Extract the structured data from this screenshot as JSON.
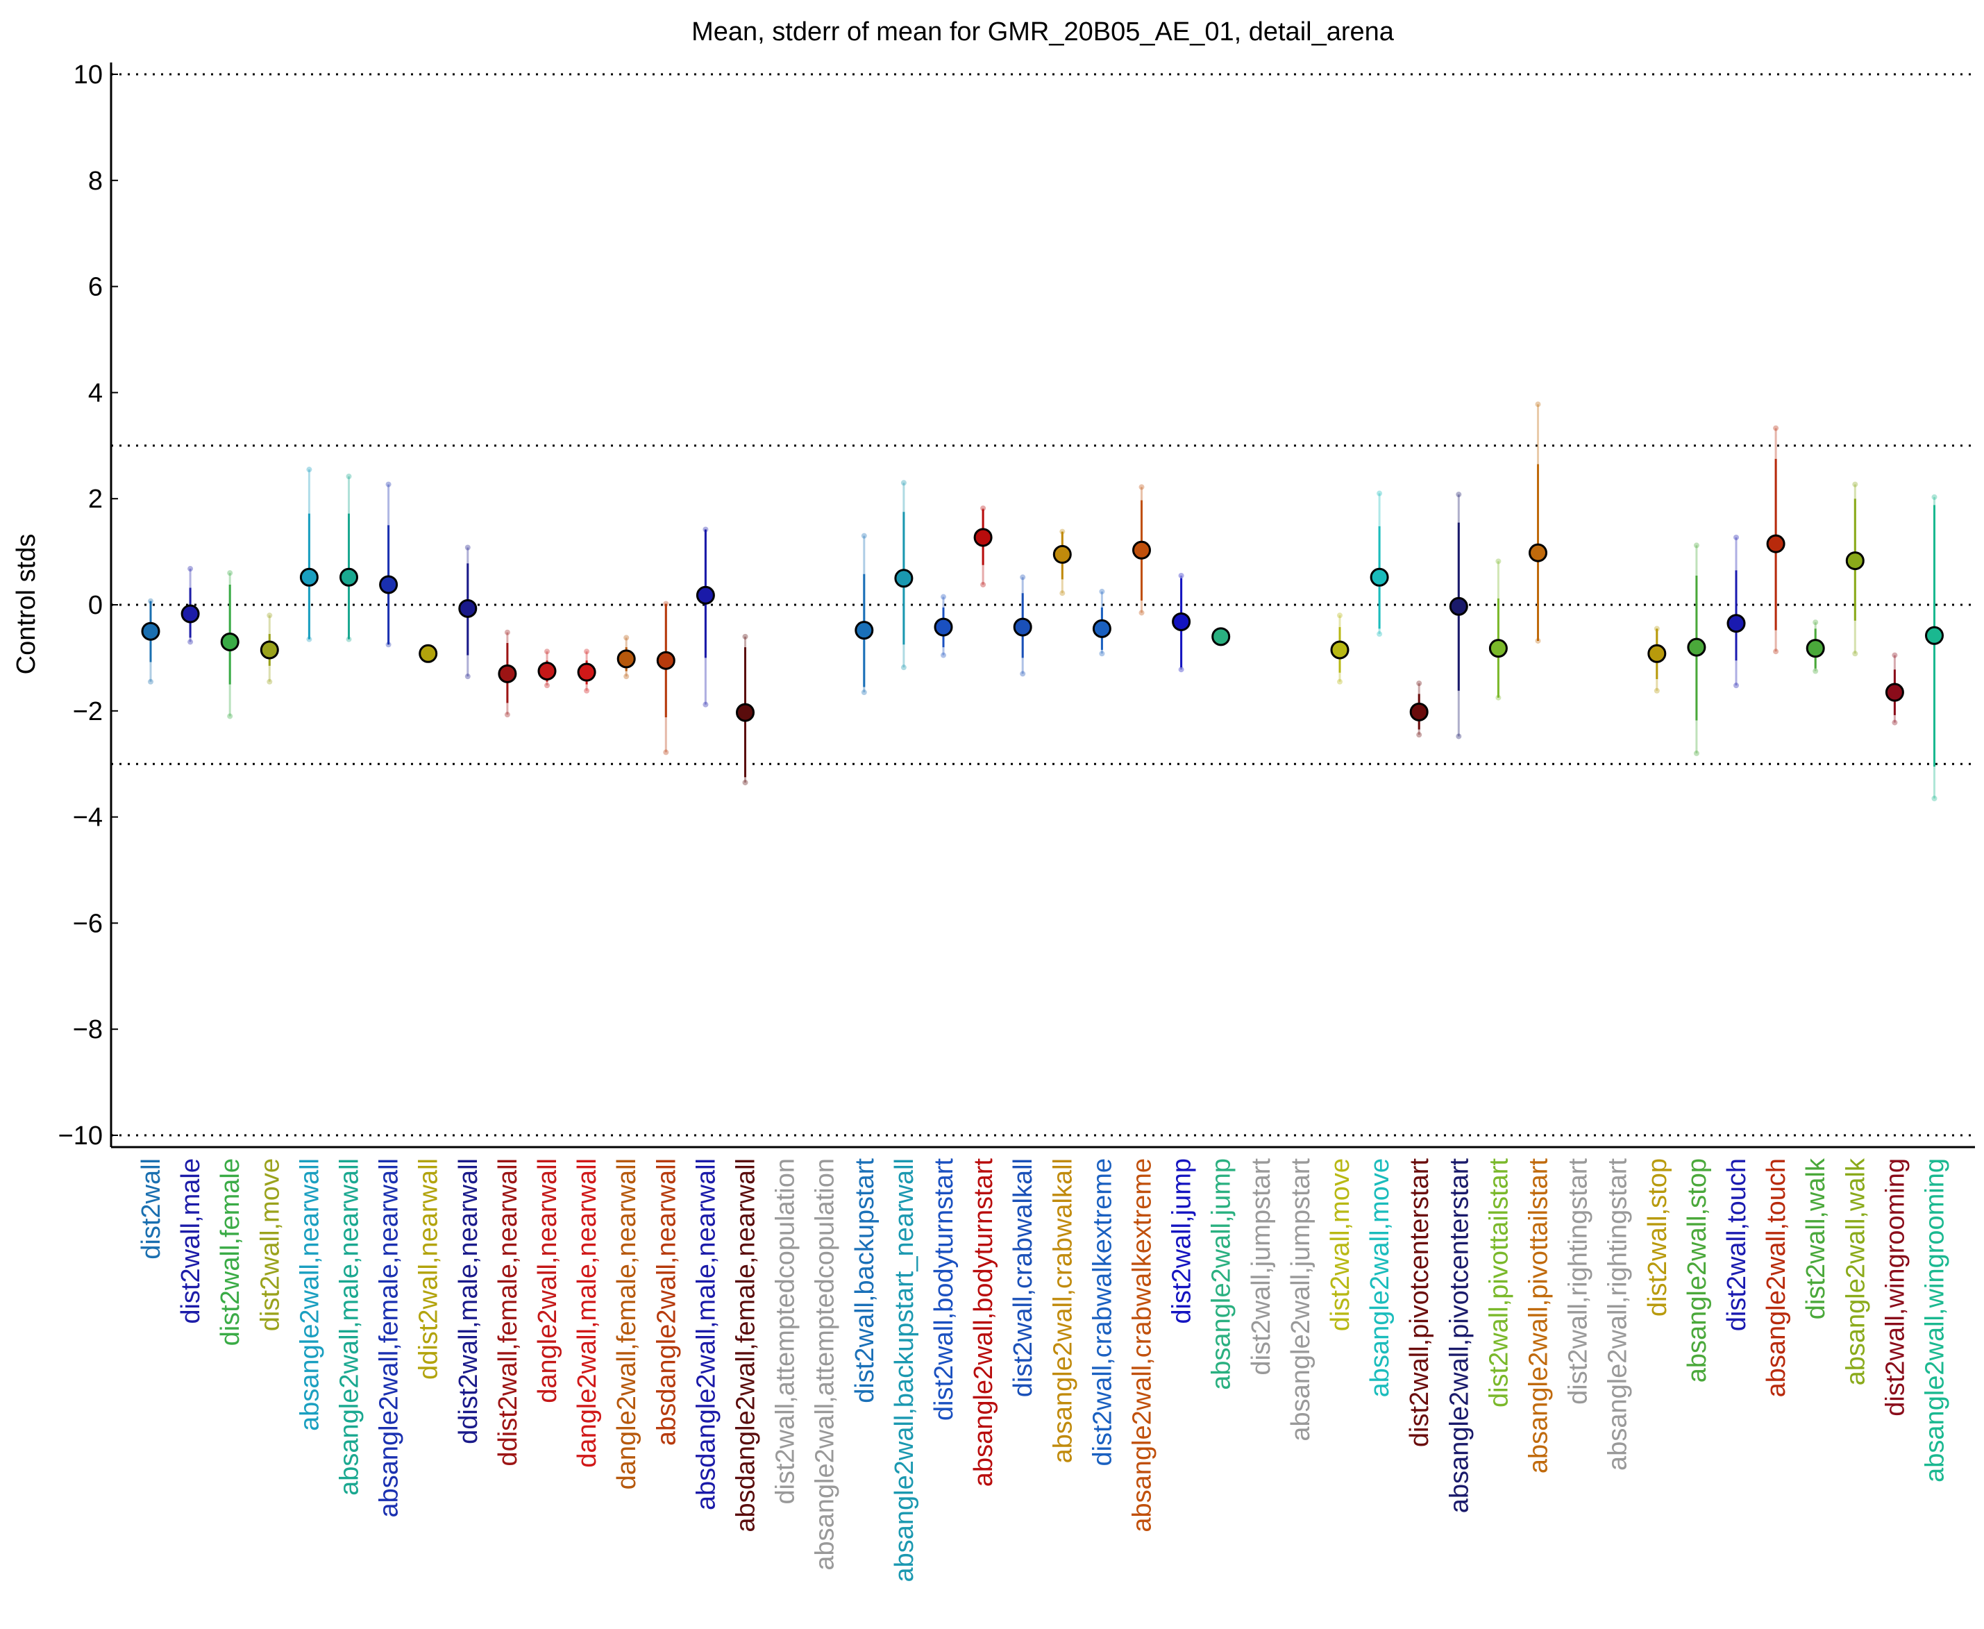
{
  "chart_data": {
    "type": "scatter",
    "title": "Mean, stderr of mean for GMR_20B05_AE_01, detail_arena",
    "xlabel": "",
    "ylabel": "Control stds",
    "ylim": [
      -10.2,
      10.2
    ],
    "yticks": [
      10,
      8,
      6,
      4,
      2,
      0,
      -2,
      -4,
      -6,
      -8,
      -10
    ],
    "ytick_labels": [
      "10",
      "8",
      "6",
      "4",
      "2",
      "0",
      "−2",
      "−4",
      "−6",
      "−8",
      "−10"
    ],
    "reference_lines": [
      10,
      3,
      0,
      -3,
      -10
    ],
    "grid": false,
    "legend": "none",
    "categories": [
      "dist2wall",
      "dist2wall,male",
      "dist2wall,female",
      "dist2wall,move",
      "absangle2wall,nearwall",
      "absangle2wall,male,nearwall",
      "absangle2wall,female,nearwall",
      "ddist2wall,nearwall",
      "ddist2wall,male,nearwall",
      "ddist2wall,female,nearwall",
      "dangle2wall,nearwall",
      "dangle2wall,male,nearwall",
      "dangle2wall,female,nearwall",
      "absdangle2wall,nearwall",
      "absdangle2wall,male,nearwall",
      "absdangle2wall,female,nearwall",
      "dist2wall,attemptedcopulation",
      "absangle2wall,attemptedcopulation",
      "dist2wall,backupstart",
      "absangle2wall,backupstart_nearwall",
      "dist2wall,bodyturnstart",
      "absangle2wall,bodyturnstart",
      "dist2wall,crabwalkall",
      "absangle2wall,crabwalkall",
      "dist2wall,crabwalkextreme",
      "absangle2wall,crabwalkextreme",
      "dist2wall,jump",
      "absangle2wall,jump",
      "dist2wall,jumpstart",
      "absangle2wall,jumpstart",
      "dist2wall,move",
      "absangle2wall,move",
      "dist2wall,pivotcenterstart",
      "absangle2wall,pivotcenterstart",
      "dist2wall,pivottailstart",
      "absangle2wall,pivottailstart",
      "dist2wall,rightingstart",
      "absangle2wall,rightingstart",
      "dist2wall,stop",
      "absangle2wall,stop",
      "dist2wall,touch",
      "absangle2wall,touch",
      "dist2wall,walk",
      "absangle2wall,walk",
      "dist2wall,wingrooming",
      "absangle2wall,wingrooming"
    ],
    "colors": [
      "#1a6fb0",
      "#1c1ca8",
      "#3aab46",
      "#9aa21c",
      "#1a9fc0",
      "#1aa890",
      "#1a30b0",
      "#b2a30c",
      "#1a1a8a",
      "#9c1414",
      "#c41818",
      "#d01818",
      "#b6580c",
      "#b63a0c",
      "#1a1aa8",
      "#5a0c0c",
      "#999999",
      "#999999",
      "#1a70b8",
      "#1a98b0",
      "#1a50c0",
      "#b80c0c",
      "#1a50b8",
      "#c08a0c",
      "#1a60c0",
      "#c0500c",
      "#1414c0",
      "#2ab080",
      "#999999",
      "#999999",
      "#b8b814",
      "#1abcbc",
      "#6a0c0c",
      "#1a1a6a",
      "#7ab82a",
      "#c06a0c",
      "#999999",
      "#999999",
      "#b89a0c",
      "#4aa83a",
      "#1a1ab0",
      "#b82a0c",
      "#4aa83a",
      "#8aaa1a",
      "#8a0c1a",
      "#1ab890"
    ],
    "values": [
      -0.5,
      -0.17,
      -0.7,
      -0.85,
      0.52,
      0.52,
      0.38,
      -0.92,
      -0.07,
      -1.3,
      -1.25,
      -1.27,
      -1.02,
      -1.05,
      0.18,
      -2.03,
      null,
      null,
      -0.48,
      0.5,
      -0.42,
      1.27,
      -0.42,
      0.95,
      -0.45,
      1.03,
      -0.32,
      -0.6,
      null,
      null,
      -0.85,
      0.52,
      -2.02,
      -0.03,
      -0.82,
      0.98,
      null,
      null,
      -0.92,
      -0.8,
      -0.35,
      1.15,
      -0.82,
      0.83,
      -1.65,
      -0.58
    ],
    "stderr_ranges": [
      [
        -1.08,
        0.07
      ],
      [
        -0.62,
        0.32
      ],
      [
        -1.5,
        0.38
      ],
      [
        -1.15,
        -0.55
      ],
      [
        -0.65,
        1.72
      ],
      [
        -0.65,
        1.72
      ],
      [
        -0.75,
        1.5
      ],
      [
        -1.02,
        -0.82
      ],
      [
        -0.95,
        0.78
      ],
      [
        -1.85,
        -0.72
      ],
      [
        -1.45,
        -1.05
      ],
      [
        -1.5,
        -1.05
      ],
      [
        -1.25,
        -0.8
      ],
      [
        -2.12,
        0.02
      ],
      [
        -1.0,
        1.42
      ],
      [
        -3.25,
        -0.8
      ],
      null,
      null,
      [
        -1.55,
        0.58
      ],
      [
        -0.75,
        1.75
      ],
      [
        -0.8,
        -0.05
      ],
      [
        0.75,
        1.8
      ],
      [
        -1.0,
        0.22
      ],
      [
        0.48,
        1.38
      ],
      [
        -0.85,
        -0.05
      ],
      [
        0.08,
        1.97
      ],
      [
        -1.18,
        0.5
      ],
      [
        -0.72,
        -0.48
      ],
      null,
      null,
      [
        -1.28,
        -0.42
      ],
      [
        -0.45,
        1.48
      ],
      [
        -2.35,
        -1.68
      ],
      [
        -1.62,
        1.55
      ],
      [
        -1.75,
        0.12
      ],
      [
        -0.68,
        2.65
      ],
      null,
      null,
      [
        -1.4,
        -0.45
      ],
      [
        -2.18,
        0.55
      ],
      [
        -1.05,
        0.65
      ],
      [
        -0.48,
        2.75
      ],
      [
        -1.2,
        -0.45
      ],
      [
        -0.3,
        2.0
      ],
      [
        -2.08,
        -1.22
      ],
      [
        -3.05,
        1.88
      ]
    ],
    "range_extents": [
      [
        -1.45,
        0.07
      ],
      [
        -0.7,
        0.68
      ],
      [
        -2.1,
        0.6
      ],
      [
        -1.45,
        -0.2
      ],
      [
        -0.65,
        2.55
      ],
      [
        -0.65,
        2.42
      ],
      [
        -0.75,
        2.27
      ],
      [
        -1.02,
        -0.82
      ],
      [
        -1.35,
        1.08
      ],
      [
        -2.07,
        -0.52
      ],
      [
        -1.52,
        -0.88
      ],
      [
        -1.62,
        -0.88
      ],
      [
        -1.35,
        -0.62
      ],
      [
        -2.78,
        0.02
      ],
      [
        -1.88,
        1.42
      ],
      [
        -3.35,
        -0.6
      ],
      null,
      null,
      [
        -1.65,
        1.3
      ],
      [
        -1.18,
        2.3
      ],
      [
        -0.95,
        0.15
      ],
      [
        0.38,
        1.82
      ],
      [
        -1.3,
        0.52
      ],
      [
        0.22,
        1.38
      ],
      [
        -0.92,
        0.25
      ],
      [
        -0.15,
        2.22
      ],
      [
        -1.22,
        0.55
      ],
      [
        -0.72,
        -0.48
      ],
      null,
      null,
      [
        -1.45,
        -0.2
      ],
      [
        -0.55,
        2.1
      ],
      [
        -2.45,
        -1.48
      ],
      [
        -2.48,
        2.08
      ],
      [
        -1.75,
        0.82
      ],
      [
        -0.68,
        3.78
      ],
      null,
      null,
      [
        -1.62,
        -0.45
      ],
      [
        -2.8,
        1.12
      ],
      [
        -1.52,
        1.27
      ],
      [
        -0.88,
        3.33
      ],
      [
        -1.25,
        -0.33
      ],
      [
        -0.92,
        2.27
      ],
      [
        -2.22,
        -0.95
      ],
      [
        -3.65,
        2.03
      ]
    ]
  }
}
